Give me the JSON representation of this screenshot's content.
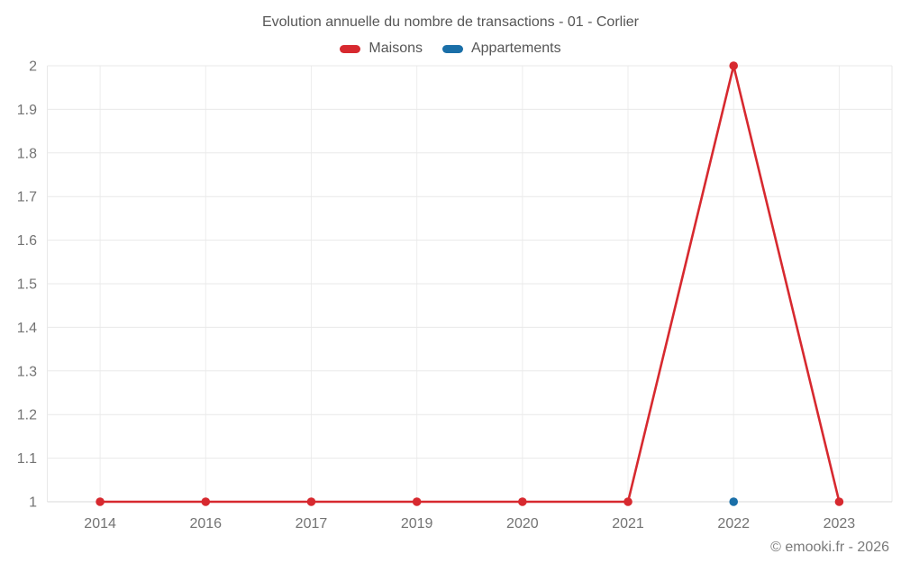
{
  "chart_data": {
    "type": "line",
    "title": "Evolution annuelle du nombre de transactions - 01 - Corlier",
    "categories": [
      "2014",
      "2016",
      "2017",
      "2019",
      "2020",
      "2021",
      "2022",
      "2023"
    ],
    "series": [
      {
        "name": "Maisons",
        "color": "#d7292f",
        "values": [
          1,
          1,
          1,
          1,
          1,
          1,
          2,
          1
        ]
      },
      {
        "name": "Appartements",
        "color": "#1a6fa8",
        "values": [
          null,
          null,
          null,
          null,
          null,
          null,
          1,
          null
        ]
      }
    ],
    "ylim": [
      1,
      2
    ],
    "y_tick_labels": [
      "1",
      "1.1",
      "1.2",
      "1.3",
      "1.4",
      "1.5",
      "1.6",
      "1.7",
      "1.8",
      "1.9",
      "2"
    ],
    "grid": true,
    "legend_position": "top",
    "marker": "circle",
    "watermark": "© emooki.fr - 2026"
  }
}
